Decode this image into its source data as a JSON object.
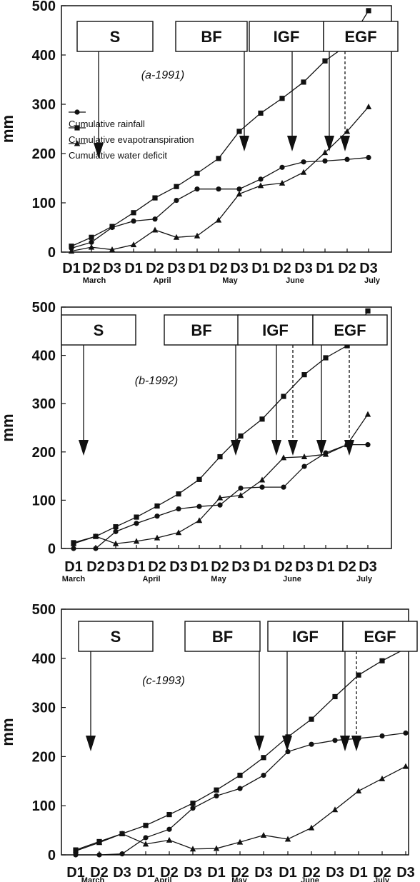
{
  "chart_data": [
    {
      "type": "line",
      "annotation": "(a-1991)",
      "ylabel": "mm",
      "ylim": [
        0,
        500
      ],
      "yticks": [
        0,
        100,
        200,
        300,
        400,
        500
      ],
      "categories": [
        "D1",
        "D2",
        "D3",
        "D1",
        "D2",
        "D3",
        "D1",
        "D2",
        "D3",
        "D1",
        "D2",
        "D3",
        "D1",
        "D2",
        "D3"
      ],
      "months": [
        "March",
        "April",
        "May",
        "June",
        "July"
      ],
      "legend": [
        "Cumulative rainfall",
        "Cumulative evapotranspiration",
        "Cumulative water deficit"
      ],
      "series": [
        {
          "name": "Cumulative rainfall",
          "marker": "circle",
          "values": [
            8,
            20,
            50,
            63,
            67,
            105,
            128,
            128,
            128,
            148,
            172,
            183,
            185,
            188,
            192
          ]
        },
        {
          "name": "Cumulative evapotranspiration",
          "marker": "square",
          "values": [
            12,
            30,
            52,
            80,
            110,
            133,
            160,
            190,
            245,
            282,
            312,
            345,
            388,
            420,
            490
          ]
        },
        {
          "name": "Cumulative water deficit",
          "marker": "triangle",
          "values": [
            2,
            10,
            5,
            15,
            45,
            30,
            33,
            65,
            118,
            135,
            140,
            162,
            202,
            245,
            295
          ]
        }
      ],
      "stages": [
        "S",
        "BF",
        "IGF",
        "EGF"
      ]
    },
    {
      "type": "line",
      "annotation": "(b-1992)",
      "ylabel": "mm",
      "ylim": [
        0,
        500
      ],
      "yticks": [
        0,
        100,
        200,
        300,
        400,
        500
      ],
      "categories": [
        "D1",
        "D2",
        "D3",
        "D1",
        "D2",
        "D3",
        "D1",
        "D2",
        "D3",
        "D1",
        "D2",
        "D3",
        "D1",
        "D2",
        "D3"
      ],
      "months": [
        "March",
        "April",
        "May",
        "June",
        "July"
      ],
      "series": [
        {
          "name": "Cumulative rainfall",
          "marker": "circle",
          "values": [
            0,
            0,
            35,
            52,
            67,
            82,
            87,
            90,
            125,
            127,
            127,
            170,
            198,
            215,
            215
          ]
        },
        {
          "name": "Cumulative evapotranspiration",
          "marker": "square",
          "values": [
            12,
            25,
            45,
            65,
            88,
            113,
            143,
            190,
            233,
            268,
            315,
            360,
            395,
            420,
            492
          ]
        },
        {
          "name": "Cumulative water deficit",
          "marker": "triangle",
          "values": [
            10,
            25,
            10,
            15,
            22,
            33,
            58,
            105,
            110,
            142,
            188,
            190,
            195,
            215,
            278
          ]
        }
      ],
      "stages": [
        "S",
        "BF",
        "IGF",
        "EGF"
      ]
    },
    {
      "type": "line",
      "annotation": "(c-1993)",
      "ylabel": "mm",
      "ylim": [
        0,
        500
      ],
      "yticks": [
        0,
        100,
        200,
        300,
        400,
        500
      ],
      "categories": [
        "D1",
        "D2",
        "D3",
        "D1",
        "D2",
        "D3",
        "D1",
        "D2",
        "D3",
        "D1",
        "D2",
        "D3",
        "D1",
        "D2",
        "D3"
      ],
      "months": [
        "March",
        "April",
        "May",
        "June",
        "July"
      ],
      "series": [
        {
          "name": "Cumulative rainfall",
          "marker": "circle",
          "values": [
            0,
            0,
            2,
            35,
            52,
            95,
            120,
            135,
            162,
            210,
            225,
            233,
            237,
            242,
            248
          ]
        },
        {
          "name": "Cumulative evapotranspiration",
          "marker": "square",
          "values": [
            10,
            27,
            43,
            60,
            82,
            105,
            132,
            162,
            198,
            240,
            276,
            322,
            366,
            395,
            420
          ]
        },
        {
          "name": "Cumulative water deficit",
          "marker": "triangle",
          "values": [
            8,
            25,
            43,
            22,
            30,
            12,
            13,
            26,
            40,
            32,
            55,
            92,
            130,
            155,
            180
          ]
        }
      ],
      "stages": [
        "S",
        "BF",
        "IGF",
        "EGF"
      ]
    }
  ]
}
